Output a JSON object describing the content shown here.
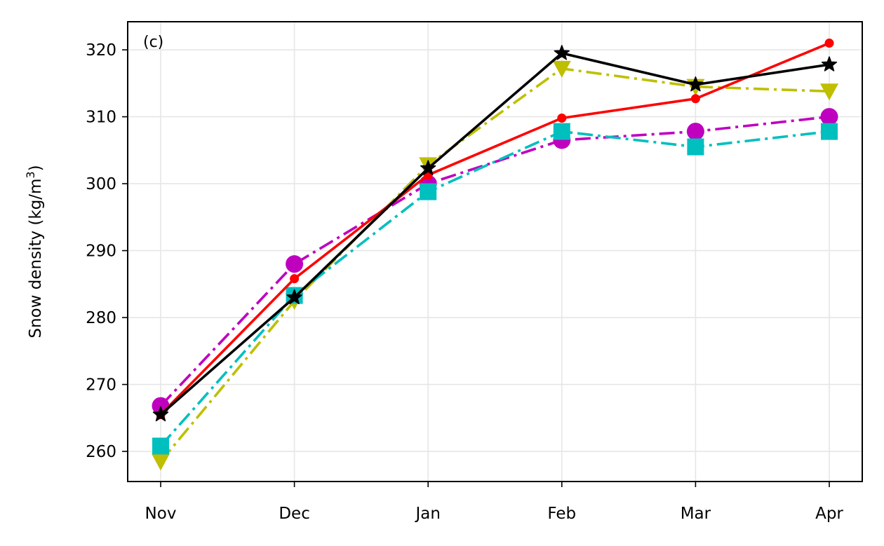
{
  "chart_data": {
    "type": "line",
    "panel_label": "(c)",
    "ylabel": "Snow density (kg/m",
    "ylabel_sup": "3",
    "ylabel_close": ")",
    "categories": [
      "Nov",
      "Dec",
      "Jan",
      "Feb",
      "Mar",
      "Apr"
    ],
    "ylim": [
      255.5,
      324.2
    ],
    "yticks": [
      260,
      270,
      280,
      290,
      300,
      310,
      320
    ],
    "grid": true,
    "series": [
      {
        "id": "magenta",
        "color": "#bf00bf",
        "dash": "dashdot",
        "marker": "circle",
        "values": [
          266.8,
          288.0,
          300.0,
          306.5,
          307.8,
          310.0
        ]
      },
      {
        "id": "yellow",
        "color": "#bfbf00",
        "dash": "dashdot",
        "marker": "triangle-down",
        "values": [
          258.5,
          282.5,
          302.8,
          317.2,
          314.5,
          313.8
        ]
      },
      {
        "id": "cyan",
        "color": "#00bfbf",
        "dash": "dashdot",
        "marker": "square",
        "values": [
          260.8,
          283.3,
          298.8,
          307.8,
          305.5,
          307.8
        ]
      },
      {
        "id": "red",
        "color": "#ff0000",
        "dash": "solid",
        "marker": "small-circle",
        "values": [
          265.5,
          285.8,
          301.3,
          309.8,
          312.7,
          321.0
        ]
      },
      {
        "id": "black",
        "color": "#000000",
        "dash": "solid",
        "marker": "star",
        "values": [
          265.5,
          283.0,
          302.3,
          319.5,
          314.8,
          317.8
        ]
      }
    ]
  }
}
